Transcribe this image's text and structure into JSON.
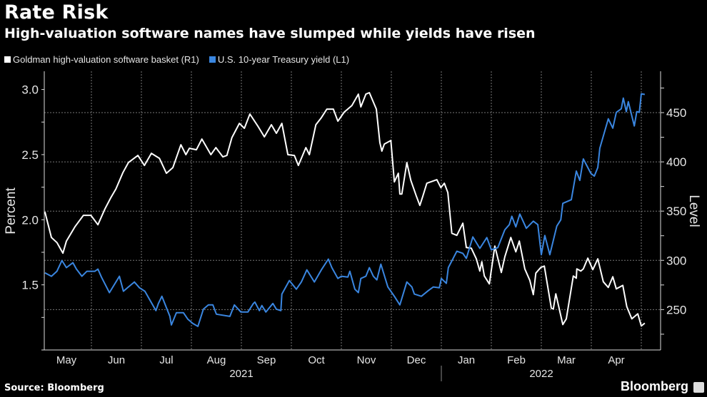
{
  "chart_data": {
    "type": "line",
    "title": "Rate Risk",
    "subtitle": "High-valuation software names have slumped while yields have risen",
    "x_unit": "months since 2021-05-01",
    "xlim": [
      0,
      12.2
    ],
    "x_month_labels": [
      "May",
      "Jun",
      "Jul",
      "Aug",
      "Sep",
      "Oct",
      "Nov",
      "Dec",
      "Jan",
      "Feb",
      "Mar",
      "Apr"
    ],
    "x_year_labels": [
      {
        "label": "2021",
        "center": 4
      },
      {
        "label": "2022",
        "center": 10
      }
    ],
    "year_divider": 8,
    "left_axis": {
      "label": "Percent",
      "ylim": [
        1.0,
        3.14
      ],
      "ticks": [
        1.5,
        2.0,
        2.5,
        3.0
      ],
      "minor_step": 0.25
    },
    "right_axis": {
      "label": "Level",
      "ylim": [
        209,
        492
      ],
      "ticks": [
        250,
        300,
        350,
        400,
        450
      ],
      "minor_step": 25
    },
    "grid": true,
    "legend_position": "top-left",
    "series": [
      {
        "name": "Goldman high-valuation software basket (R1)",
        "axis": "right",
        "color": "#ffffff",
        "points": [
          [
            0.07,
            349.3
          ],
          [
            0.2,
            323.2
          ],
          [
            0.31,
            318.1
          ],
          [
            0.43,
            307.3
          ],
          [
            0.5,
            319.6
          ],
          [
            0.67,
            334.1
          ],
          [
            0.84,
            345.7
          ],
          [
            0.99,
            345.7
          ],
          [
            1.13,
            336.2
          ],
          [
            1.27,
            352.2
          ],
          [
            1.39,
            363.8
          ],
          [
            1.49,
            372.5
          ],
          [
            1.63,
            389.1
          ],
          [
            1.74,
            399.3
          ],
          [
            1.93,
            406.5
          ],
          [
            2.06,
            396.4
          ],
          [
            2.2,
            408.7
          ],
          [
            2.36,
            403.6
          ],
          [
            2.5,
            388.4
          ],
          [
            2.63,
            394.2
          ],
          [
            2.79,
            417.4
          ],
          [
            2.89,
            407.3
          ],
          [
            2.96,
            413.8
          ],
          [
            3.1,
            412.3
          ],
          [
            3.21,
            423.2
          ],
          [
            3.39,
            407.3
          ],
          [
            3.49,
            414.5
          ],
          [
            3.63,
            405.1
          ],
          [
            3.71,
            406.5
          ],
          [
            3.81,
            424.6
          ],
          [
            3.96,
            439.1
          ],
          [
            4.06,
            434.1
          ],
          [
            4.17,
            448.6
          ],
          [
            4.34,
            435.5
          ],
          [
            4.46,
            425.4
          ],
          [
            4.6,
            437.7
          ],
          [
            4.7,
            429.0
          ],
          [
            4.81,
            439.1
          ],
          [
            4.93,
            407.3
          ],
          [
            5.06,
            406.5
          ],
          [
            5.14,
            396.4
          ],
          [
            5.29,
            414.5
          ],
          [
            5.36,
            407.3
          ],
          [
            5.49,
            437.7
          ],
          [
            5.6,
            444.9
          ],
          [
            5.71,
            453.6
          ],
          [
            5.84,
            453.6
          ],
          [
            5.93,
            441.3
          ],
          [
            6.06,
            450.7
          ],
          [
            6.21,
            457.2
          ],
          [
            6.34,
            468.8
          ],
          [
            6.39,
            455.8
          ],
          [
            6.49,
            468.8
          ],
          [
            6.56,
            470.3
          ],
          [
            6.7,
            453.6
          ],
          [
            6.77,
            419.6
          ],
          [
            6.81,
            410.9
          ],
          [
            6.86,
            418.1
          ],
          [
            6.99,
            421.7
          ],
          [
            7.06,
            379.7
          ],
          [
            7.14,
            388.4
          ],
          [
            7.17,
            367.4
          ],
          [
            7.21,
            367.4
          ],
          [
            7.31,
            399.3
          ],
          [
            7.39,
            381.2
          ],
          [
            7.5,
            365.2
          ],
          [
            7.57,
            355.8
          ],
          [
            7.63,
            365.2
          ],
          [
            7.71,
            378.3
          ],
          [
            7.91,
            381.9
          ],
          [
            7.99,
            373.9
          ],
          [
            8.06,
            378.3
          ],
          [
            8.13,
            368.8
          ],
          [
            8.21,
            327.5
          ],
          [
            8.31,
            325.4
          ],
          [
            8.43,
            337.7
          ],
          [
            8.5,
            313.0
          ],
          [
            8.6,
            312.3
          ],
          [
            8.7,
            301.5
          ],
          [
            8.77,
            289.1
          ],
          [
            8.81,
            298.6
          ],
          [
            8.86,
            284.1
          ],
          [
            8.96,
            276.1
          ],
          [
            9.07,
            314.5
          ],
          [
            9.2,
            287.7
          ],
          [
            9.27,
            303.6
          ],
          [
            9.39,
            323.2
          ],
          [
            9.49,
            308.7
          ],
          [
            9.56,
            319.6
          ],
          [
            9.67,
            291.3
          ],
          [
            9.77,
            279.7
          ],
          [
            9.84,
            265.2
          ],
          [
            9.89,
            287.0
          ],
          [
            9.99,
            292.8
          ],
          [
            10.06,
            294.2
          ],
          [
            10.2,
            251.5
          ],
          [
            10.24,
            250.7
          ],
          [
            10.29,
            266.0
          ],
          [
            10.43,
            234.8
          ],
          [
            10.5,
            240.6
          ],
          [
            10.64,
            284.1
          ],
          [
            10.7,
            281.9
          ],
          [
            10.71,
            291.3
          ],
          [
            10.79,
            289.1
          ],
          [
            10.84,
            291.3
          ],
          [
            10.93,
            302.2
          ],
          [
            11.03,
            290.6
          ],
          [
            11.13,
            301.5
          ],
          [
            11.24,
            278.3
          ],
          [
            11.34,
            272.5
          ],
          [
            11.43,
            283.3
          ],
          [
            11.5,
            271.0
          ],
          [
            11.63,
            274.6
          ],
          [
            11.71,
            252.9
          ],
          [
            11.81,
            240.6
          ],
          [
            11.93,
            245.7
          ],
          [
            12.0,
            233.3
          ],
          [
            12.07,
            236.2
          ]
        ]
      },
      {
        "name": "U.S. 10-year Treasury yield (L1)",
        "axis": "left",
        "color": "#3a86e0",
        "points": [
          [
            0.07,
            1.593
          ],
          [
            0.2,
            1.566
          ],
          [
            0.31,
            1.604
          ],
          [
            0.41,
            1.687
          ],
          [
            0.5,
            1.632
          ],
          [
            0.63,
            1.67
          ],
          [
            0.7,
            1.621
          ],
          [
            0.81,
            1.566
          ],
          [
            0.91,
            1.604
          ],
          [
            1.07,
            1.604
          ],
          [
            1.13,
            1.621
          ],
          [
            1.2,
            1.56
          ],
          [
            1.36,
            1.44
          ],
          [
            1.56,
            1.566
          ],
          [
            1.64,
            1.451
          ],
          [
            1.74,
            1.484
          ],
          [
            1.86,
            1.522
          ],
          [
            1.96,
            1.478
          ],
          [
            2.07,
            1.451
          ],
          [
            2.29,
            1.302
          ],
          [
            2.34,
            1.357
          ],
          [
            2.41,
            1.412
          ],
          [
            2.57,
            1.258
          ],
          [
            2.6,
            1.192
          ],
          [
            2.7,
            1.286
          ],
          [
            2.84,
            1.286
          ],
          [
            2.93,
            1.236
          ],
          [
            3.03,
            1.203
          ],
          [
            3.13,
            1.181
          ],
          [
            3.24,
            1.313
          ],
          [
            3.34,
            1.346
          ],
          [
            3.43,
            1.346
          ],
          [
            3.5,
            1.275
          ],
          [
            3.77,
            1.258
          ],
          [
            3.86,
            1.346
          ],
          [
            3.99,
            1.291
          ],
          [
            4.13,
            1.291
          ],
          [
            4.24,
            1.357
          ],
          [
            4.27,
            1.368
          ],
          [
            4.36,
            1.302
          ],
          [
            4.41,
            1.341
          ],
          [
            4.49,
            1.291
          ],
          [
            4.63,
            1.357
          ],
          [
            4.7,
            1.313
          ],
          [
            4.79,
            1.302
          ],
          [
            4.81,
            1.429
          ],
          [
            4.96,
            1.533
          ],
          [
            5.1,
            1.467
          ],
          [
            5.2,
            1.522
          ],
          [
            5.31,
            1.615
          ],
          [
            5.46,
            1.522
          ],
          [
            5.6,
            1.615
          ],
          [
            5.74,
            1.698
          ],
          [
            5.81,
            1.632
          ],
          [
            5.93,
            1.549
          ],
          [
            6.0,
            1.566
          ],
          [
            6.13,
            1.56
          ],
          [
            6.17,
            1.604
          ],
          [
            6.27,
            1.467
          ],
          [
            6.34,
            1.44
          ],
          [
            6.39,
            1.549
          ],
          [
            6.49,
            1.566
          ],
          [
            6.56,
            1.632
          ],
          [
            6.64,
            1.566
          ],
          [
            6.71,
            1.538
          ],
          [
            6.79,
            1.659
          ],
          [
            6.93,
            1.484
          ],
          [
            7.06,
            1.412
          ],
          [
            7.17,
            1.346
          ],
          [
            7.31,
            1.522
          ],
          [
            7.41,
            1.484
          ],
          [
            7.46,
            1.429
          ],
          [
            7.6,
            1.412
          ],
          [
            7.74,
            1.456
          ],
          [
            7.84,
            1.484
          ],
          [
            7.96,
            1.478
          ],
          [
            8.0,
            1.549
          ],
          [
            8.1,
            1.511
          ],
          [
            8.14,
            1.632
          ],
          [
            8.31,
            1.758
          ],
          [
            8.43,
            1.742
          ],
          [
            8.5,
            1.703
          ],
          [
            8.63,
            1.868
          ],
          [
            8.77,
            1.78
          ],
          [
            8.91,
            1.863
          ],
          [
            9.0,
            1.769
          ],
          [
            9.13,
            1.786
          ],
          [
            9.27,
            1.923
          ],
          [
            9.36,
            1.962
          ],
          [
            9.41,
            2.027
          ],
          [
            9.49,
            1.945
          ],
          [
            9.57,
            2.044
          ],
          [
            9.7,
            1.934
          ],
          [
            9.84,
            1.989
          ],
          [
            9.93,
            1.962
          ],
          [
            10.0,
            1.731
          ],
          [
            10.07,
            1.879
          ],
          [
            10.17,
            1.731
          ],
          [
            10.31,
            1.951
          ],
          [
            10.39,
            2.0
          ],
          [
            10.43,
            2.126
          ],
          [
            10.6,
            2.154
          ],
          [
            10.7,
            2.374
          ],
          [
            10.77,
            2.302
          ],
          [
            10.84,
            2.467
          ],
          [
            10.99,
            2.357
          ],
          [
            11.06,
            2.335
          ],
          [
            11.13,
            2.401
          ],
          [
            11.17,
            2.549
          ],
          [
            11.34,
            2.775
          ],
          [
            11.43,
            2.703
          ],
          [
            11.5,
            2.824
          ],
          [
            11.6,
            2.852
          ],
          [
            11.64,
            2.934
          ],
          [
            11.7,
            2.83
          ],
          [
            11.74,
            2.907
          ],
          [
            11.86,
            2.72
          ],
          [
            11.91,
            2.83
          ],
          [
            11.96,
            2.824
          ],
          [
            12.0,
            2.967
          ],
          [
            12.07,
            2.962
          ]
        ]
      }
    ]
  },
  "header": {
    "title": "Rate Risk",
    "subtitle": "High-valuation software names have slumped while yields have risen"
  },
  "legend": [
    {
      "label": "Goldman high-valuation software basket (R1)",
      "color": "#ffffff"
    },
    {
      "label": "U.S. 10-year Treasury yield (L1)",
      "color": "#3a86e0"
    }
  ],
  "footer": {
    "source": "Source: Bloomberg",
    "brand": "Bloomberg"
  }
}
